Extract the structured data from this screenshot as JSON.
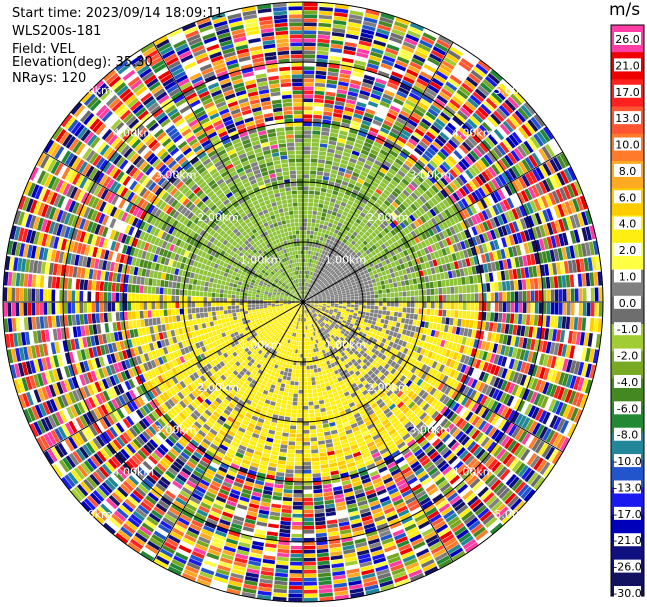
{
  "info": {
    "start_time": "Start time: 2023/09/14 18:09:11",
    "instrument": "WLS200s-181",
    "field": "Field: VEL",
    "elevation": "Elevation(deg): 35.30",
    "nrays": "NRays: 120"
  },
  "ppi": {
    "rays": 120,
    "range_rings": [
      "1.00km",
      "2.00km",
      "3.00km",
      "4.00km",
      "5.00km"
    ],
    "max_range_km": 5.3
  },
  "colorbar": {
    "unit": "m/s",
    "ticks": [
      "26.0",
      "21.0",
      "17.0",
      "13.0",
      "10.0",
      "8.0",
      "6.0",
      "4.0",
      "2.0",
      "1.0",
      "0.0",
      "-1.0",
      "-2.0",
      "-4.0",
      "-6.0",
      "-8.0",
      "-10.0",
      "-13.0",
      "-17.0",
      "-21.0",
      "-26.0",
      "-30.0"
    ],
    "colors": [
      "#ff3ea5",
      "#ee0000",
      "#ff2020",
      "#ff5533",
      "#ff7a2a",
      "#ffaa22",
      "#ffcc00",
      "#ffee11",
      "#ffff44",
      "#808080",
      "#6e6e6e",
      "#a2cc33",
      "#77aa22",
      "#448822",
      "#228833",
      "#228899",
      "#2255cc",
      "#1a1aee",
      "#0000bb",
      "#101080",
      "#121260"
    ]
  }
}
